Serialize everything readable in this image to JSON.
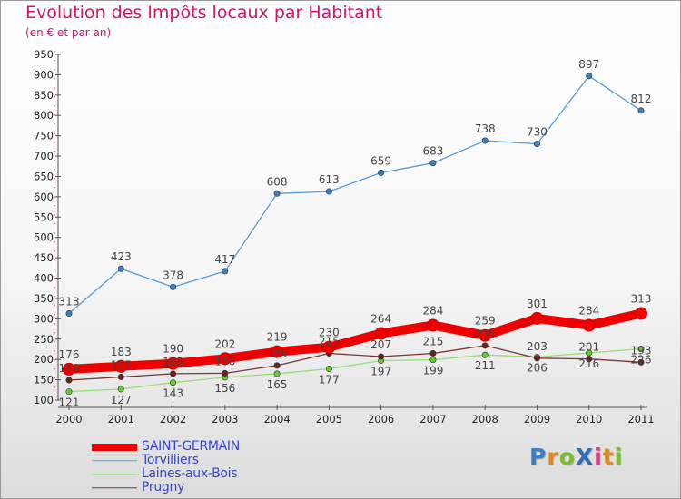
{
  "chart_data": {
    "type": "line",
    "title": "Evolution des Impôts locaux par Habitant",
    "subtitle": "(en € et par an)",
    "categories": [
      "2000",
      "2001",
      "2002",
      "2003",
      "2004",
      "2005",
      "2006",
      "2007",
      "2008",
      "2009",
      "2010",
      "2011"
    ],
    "ylim": [
      100,
      950
    ],
    "yticks": [
      100,
      150,
      200,
      250,
      300,
      350,
      400,
      450,
      500,
      550,
      600,
      650,
      700,
      750,
      800,
      850,
      900,
      950
    ],
    "grid": false,
    "legend_position": "bottom-left",
    "series": [
      {
        "name": "Torvilliers",
        "color": "#5a9bd4",
        "marker": "#3a7fc0",
        "width": 1.3,
        "label_position": "above",
        "values": [
          313,
          423,
          378,
          417,
          608,
          613,
          659,
          683,
          738,
          730,
          897,
          812
        ]
      },
      {
        "name": "Laines-aux-Bois",
        "color": "#99dd77",
        "marker": "#66cc33",
        "width": 1.3,
        "label_position": "below",
        "values": [
          121,
          127,
          143,
          156,
          165,
          177,
          197,
          199,
          211,
          206,
          216,
          226
        ]
      },
      {
        "name": "Prugny",
        "color": "#7a3535",
        "marker": "#6b2222",
        "width": 1.3,
        "label_position": "above",
        "values": [
          149,
          157,
          165,
          166,
          185,
          215,
          207,
          215,
          234,
          203,
          201,
          193
        ]
      },
      {
        "name": "SAINT-GERMAIN",
        "color": "#ee0000",
        "marker": "#ee0000",
        "width": 10,
        "label_position": "above",
        "values": [
          176,
          183,
          190,
          202,
          219,
          230,
          264,
          284,
          259,
          301,
          284,
          313
        ]
      }
    ],
    "legend_order": [
      "SAINT-GERMAIN",
      "Torvilliers",
      "Laines-aux-Bois",
      "Prugny"
    ]
  },
  "legend": [
    {
      "name": "SAINT-GERMAIN",
      "color": "#ee0000",
      "thickness": 8
    },
    {
      "name": "Torvilliers",
      "color": "#5a9bd4",
      "thickness": 1.5
    },
    {
      "name": "Laines-aux-Bois",
      "color": "#99dd77",
      "thickness": 1.5
    },
    {
      "name": "Prugny",
      "color": "#7a3535",
      "thickness": 1.5
    }
  ],
  "logo": {
    "text": "ProXiti"
  }
}
